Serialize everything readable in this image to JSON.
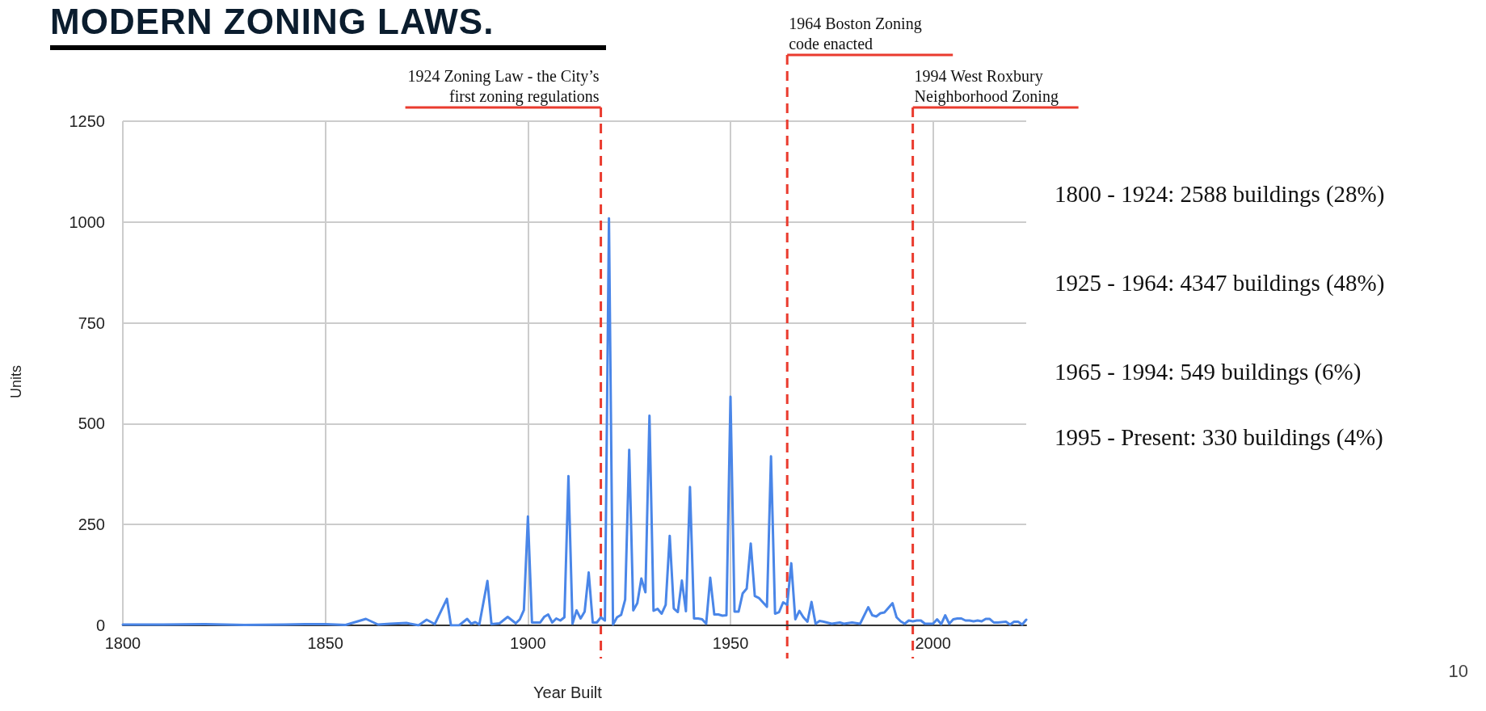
{
  "chart_data": {
    "type": "line",
    "title": "MODERN ZONING LAWS.",
    "xlabel": "Year Built",
    "ylabel": "Units",
    "x": [
      1800,
      1810,
      1820,
      1830,
      1840,
      1845,
      1850,
      1855,
      1860,
      1863,
      1866,
      1870,
      1873,
      1875,
      1877,
      1880,
      1881,
      1883,
      1885,
      1886,
      1887,
      1888,
      1890,
      1891,
      1893,
      1895,
      1897,
      1898,
      1899,
      1900,
      1901,
      1903,
      1904,
      1905,
      1906,
      1907,
      1908,
      1909,
      1910,
      1911,
      1912,
      1913,
      1914,
      1915,
      1916,
      1917,
      1918,
      1919,
      1920,
      1921,
      1922,
      1923,
      1924,
      1925,
      1926,
      1927,
      1928,
      1929,
      1930,
      1931,
      1932,
      1933,
      1934,
      1935,
      1936,
      1937,
      1938,
      1939,
      1940,
      1941,
      1942,
      1943,
      1944,
      1945,
      1946,
      1947,
      1948,
      1949,
      1950,
      1951,
      1952,
      1953,
      1954,
      1955,
      1956,
      1957,
      1958,
      1959,
      1960,
      1961,
      1962,
      1963,
      1964,
      1965,
      1966,
      1967,
      1968,
      1969,
      1970,
      1971,
      1972,
      1973,
      1975,
      1977,
      1978,
      1980,
      1982,
      1984,
      1985,
      1986,
      1987,
      1988,
      1990,
      1991,
      1992,
      1993,
      1994,
      1995,
      1996,
      1997,
      1998,
      1999,
      2000,
      2001,
      2002,
      2003,
      2004,
      2005,
      2006,
      2007,
      2008,
      2009,
      2010,
      2011,
      2012,
      2013,
      2014,
      2015,
      2016,
      2017,
      2018,
      2019,
      2020,
      2021,
      2022,
      2023
    ],
    "series": [
      {
        "color": "#4a86e8",
        "values": [
          2,
          2,
          3,
          1,
          2,
          3,
          3,
          1,
          16,
          2,
          4,
          6,
          0,
          14,
          3,
          66,
          0,
          0,
          16,
          4,
          8,
          2,
          110,
          3,
          5,
          21,
          5,
          15,
          38,
          270,
          7,
          7,
          21,
          27,
          7,
          17,
          12,
          20,
          370,
          4,
          37,
          17,
          34,
          131,
          7,
          7,
          20,
          12,
          1009,
          2,
          20,
          26,
          64,
          435,
          37,
          55,
          116,
          82,
          520,
          36,
          41,
          29,
          51,
          222,
          42,
          33,
          111,
          35,
          343,
          17,
          17,
          15,
          4,
          118,
          27,
          27,
          24,
          25,
          567,
          34,
          34,
          79,
          91,
          203,
          73,
          68,
          57,
          46,
          419,
          29,
          33,
          57,
          51,
          154,
          15,
          36,
          20,
          9,
          58,
          4,
          11,
          9,
          4,
          7,
          4,
          7,
          4,
          45,
          25,
          22,
          30,
          32,
          55,
          20,
          10,
          4,
          12,
          10,
          12,
          12,
          4,
          4,
          4,
          15,
          3,
          25,
          4,
          15,
          17,
          17,
          12,
          12,
          10,
          12,
          10,
          16,
          16,
          7,
          7,
          8,
          9,
          2,
          9,
          9,
          2,
          14
        ]
      }
    ],
    "xlim": [
      1800,
      2023
    ],
    "xticks": [
      1800,
      1850,
      1900,
      1950,
      2000
    ],
    "ylim": [
      0,
      1250
    ],
    "yticks": [
      0,
      250,
      500,
      750,
      1000,
      1250
    ],
    "grid": true,
    "marker": "none",
    "line_style": "solid",
    "ref_lines": [
      {
        "axis": "x",
        "value": 1918,
        "label": "1924 Zoning Law - the City’s\nfirst zoning regulations",
        "color": "#ea3b2e",
        "line_style": "dashed"
      },
      {
        "axis": "x",
        "value": 1964,
        "label": "1964 Boston Zoning\ncode enacted",
        "color": "#ea3b2e",
        "line_style": "dashed"
      },
      {
        "axis": "x",
        "value": 1995,
        "label": "1994 West Roxbury\nNeighborhood Zoning",
        "color": "#ea3b2e",
        "line_style": "dashed"
      }
    ],
    "annotations": [
      "1800 - 1924: 2588 buildings (28%)",
      "1925 - 1964: 4347 buildings (48%)",
      "1965 - 1994: 549 buildings (6%)",
      "1995 - Present: 330 buildings (4%)",
      "10"
    ]
  }
}
